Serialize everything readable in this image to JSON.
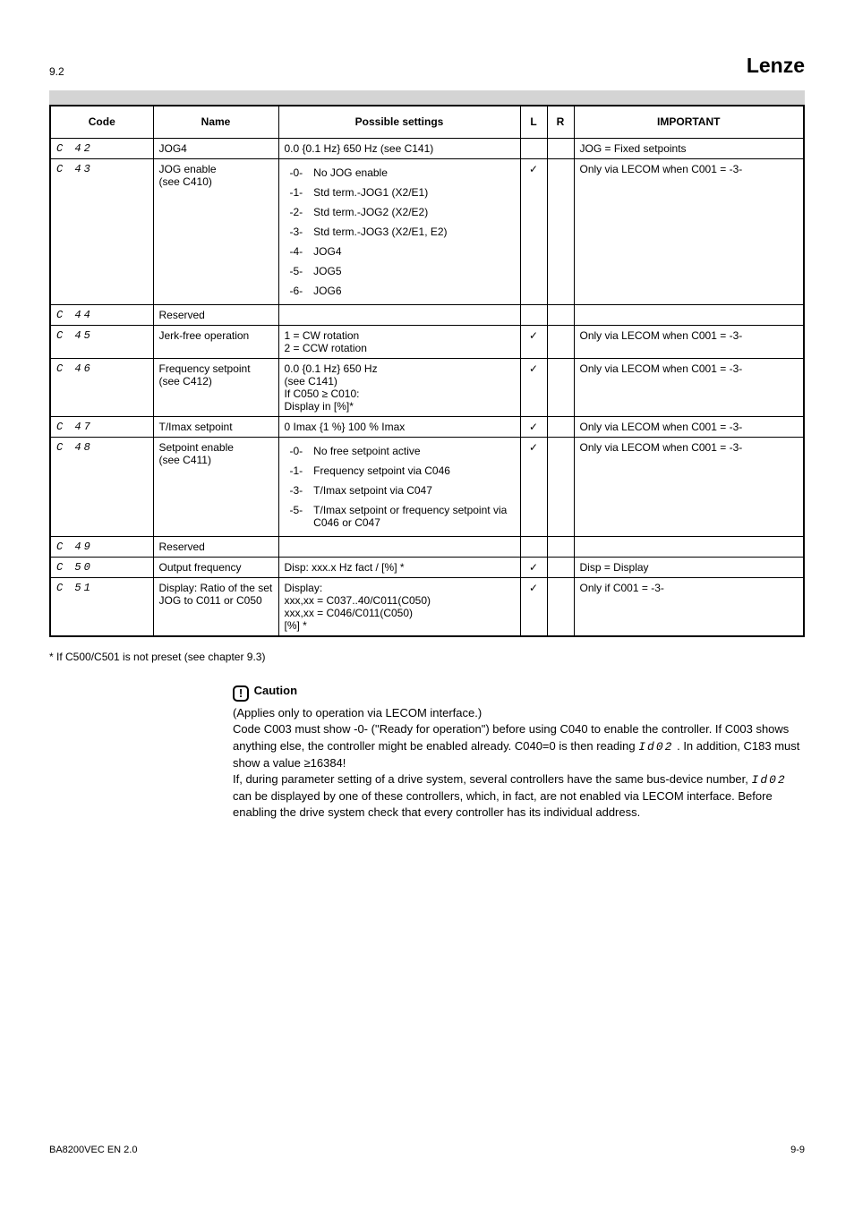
{
  "header": {
    "section_no": "9.2",
    "mode_title": "Lenze"
  },
  "table_title_bar_color": "#d4d4d4",
  "columns": [
    "Code",
    "Name",
    "Possible settings",
    "L",
    "R",
    "IMPORTANT"
  ],
  "rows": [
    {
      "code": "C  42",
      "name": "JOG4",
      "settings": "0.0 {0.1 Hz} 650 Hz (see C141)",
      "l": "",
      "r": "",
      "important": "JOG = Fixed setpoints"
    },
    {
      "code": "C  43",
      "name": "JOG enable\n(see C410)",
      "settings_map": [
        [
          "-0-",
          "No JOG enable"
        ],
        [
          "-1-",
          "Std term.-JOG1 (X2/E1)"
        ],
        [
          "-2-",
          "Std term.-JOG2 (X2/E2)"
        ],
        [
          "-3-",
          "Std term.-JOG3 (X2/E1, E2)"
        ],
        [
          "-4-",
          "JOG4"
        ],
        [
          "-5-",
          "JOG5"
        ],
        [
          "-6-",
          "JOG6"
        ]
      ],
      "l": "✓",
      "r": "",
      "important": "Only via LECOM when C001 = -3-"
    },
    {
      "code": "C  44",
      "name": "Reserved",
      "settings": "",
      "l": "",
      "r": "",
      "important": ""
    },
    {
      "code": "C  45",
      "name": "Jerk-free operation",
      "settings": "1 = CW rotation\n2 = CCW rotation",
      "l": "✓",
      "r": "",
      "important": "Only via LECOM when C001 = -3-"
    },
    {
      "code": "C  46",
      "name": "Frequency setpoint\n(see C412)",
      "settings": "0.0 {0.1 Hz} 650 Hz\n                 (see C141)\nIf C050 ≥ C010:\nDisplay in [%]*",
      "l": "✓",
      "r": "",
      "important": "Only via LECOM when C001 = -3-"
    },
    {
      "code": "C  47",
      "name": "T/Imax setpoint",
      "settings": "0 Imax {1 %} 100 % Imax",
      "l": "✓",
      "r": "",
      "important": "Only via LECOM when C001 = -3-"
    },
    {
      "code": "C  48",
      "name": "Setpoint enable\n(see C411)",
      "settings_map": [
        [
          "-0-",
          "No free setpoint active"
        ],
        [
          "-1-",
          "Frequency setpoint via C046"
        ],
        [
          "-3-",
          "T/Imax setpoint via C047"
        ],
        [
          "-5-",
          "T/Imax setpoint or frequency setpoint via C046 or C047"
        ]
      ],
      "l": "✓",
      "r": "",
      "important": "Only via LECOM when C001 = -3-"
    },
    {
      "code": "C  49",
      "name": "Reserved",
      "settings": "",
      "l": "",
      "r": "",
      "important": ""
    },
    {
      "code": "C  50",
      "name": "Output frequency",
      "settings": "Disp: xxx.x Hz fact / [%] *",
      "l": "✓",
      "r": "",
      "important": "Disp = Display"
    },
    {
      "code": "C  51",
      "name": "Display: Ratio of the set JOG to C011 or C050",
      "settings": "Display:\nxxx,xx = C037..40/C011(C050)\nxxx,xx = C046/C011(C050)\n[%] *",
      "l": "✓",
      "r": "",
      "important": "Only if C001 = -3-"
    }
  ],
  "notes": {
    "asterisk": "* If C500/C501 is not preset (see chapter 9.3)",
    "caution_icon_text": "!",
    "caution_lead": "Caution",
    "caution_body": "(Applies only to operation via LECOM interface.)\nCode C003 must show -0- (\"Ready for operation\") before using C040 to enable the controller. If C003 shows anything else, the controller might be enabled already. C040=0 is then reading ",
    "id02_1": "Id02",
    "caution_body2": ". In addition, C183 must show a value ≥16384!\nIf, during parameter setting of a drive system, several controllers have the same bus-device number,",
    "id02_2": "Id02",
    "caution_body3": " can be displayed by one of these controllers, which, in fact, are not enabled via LECOM interface. Before enabling the drive system check that every controller has its individual address."
  },
  "footer": {
    "left": "BA8200VEC EN 2.0",
    "right": "9-9"
  }
}
